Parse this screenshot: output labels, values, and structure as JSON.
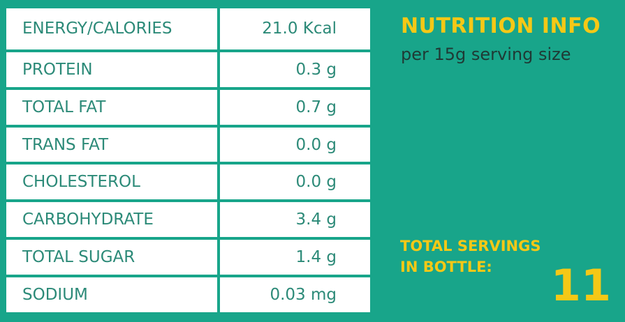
{
  "header": {
    "title": "NUTRITION INFO",
    "subtitle": "per 15g serving size"
  },
  "nutrients": [
    {
      "name": "ENERGY/CALORIES",
      "value": "21.0 Kcal"
    },
    {
      "name": "PROTEIN",
      "value": "0.3 g"
    },
    {
      "name": "TOTAL FAT",
      "value": "0.7 g"
    },
    {
      "name": "TRANS FAT",
      "value": "0.0 g"
    },
    {
      "name": "CHOLESTEROL",
      "value": "0.0 g"
    },
    {
      "name": "CARBOHYDRATE",
      "value": "3.4 g"
    },
    {
      "name": "TOTAL SUGAR",
      "value": "1.4 g"
    },
    {
      "name": "SODIUM",
      "value": "0.03 mg"
    }
  ],
  "servings": {
    "label_line1": "TOTAL SERVINGS",
    "label_line2": "IN BOTTLE:",
    "count": "11"
  },
  "colors": {
    "background": "#18a58a",
    "accent": "#f5c816",
    "table_text": "#2c8a78"
  }
}
